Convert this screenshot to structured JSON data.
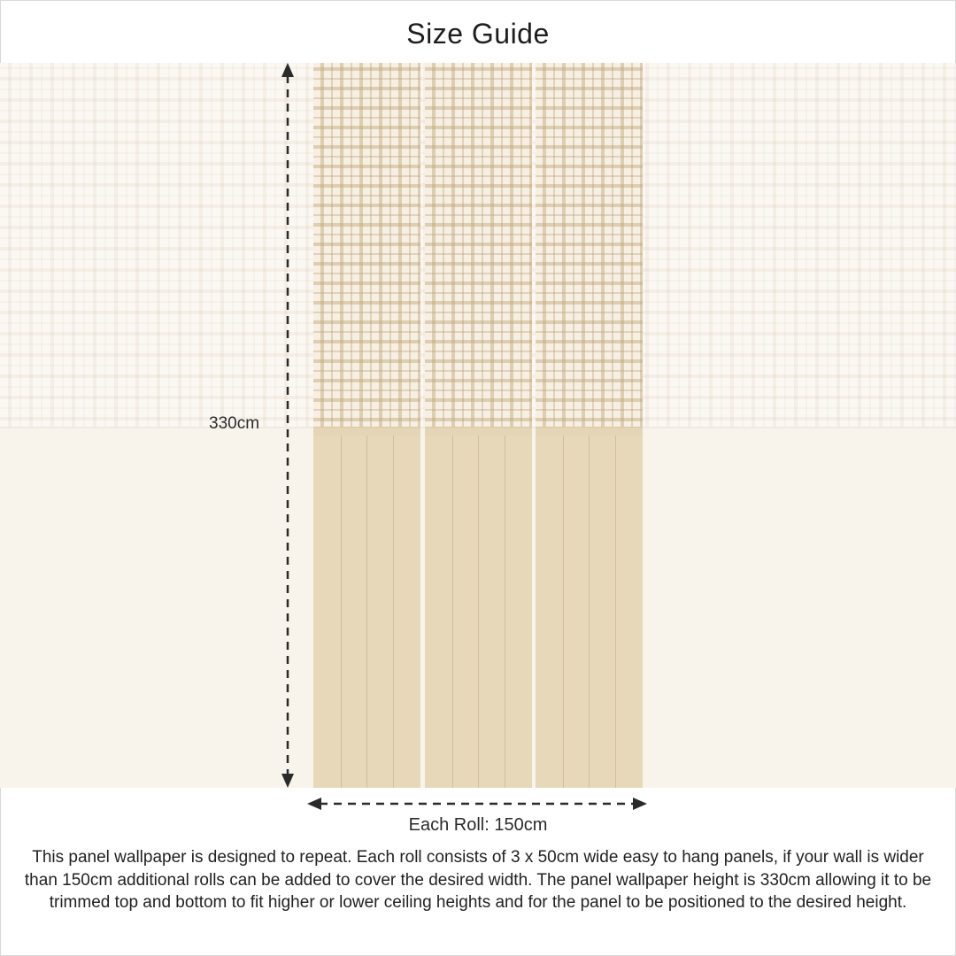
{
  "title": "Size Guide",
  "height_label": "330cm",
  "width_label": "Each Roll: 150cm",
  "description": "This panel wallpaper is designed to repeat. Each roll consists of 3 x 50cm wide easy to hang panels, if your wall is wider than 150cm additional rolls can be added to cover the desired width. The panel wallpaper height is 330cm allowing it to be trimmed top and bottom to fit higher or lower ceiling heights and for the panel to be positioned to the desired height.",
  "panel_count": 3,
  "colors": {
    "wall": "#fbf8f3",
    "panel_check": "#f7efe2",
    "panel_wainscot": "#e6d8b9",
    "arrow": "#2a2a2a"
  }
}
